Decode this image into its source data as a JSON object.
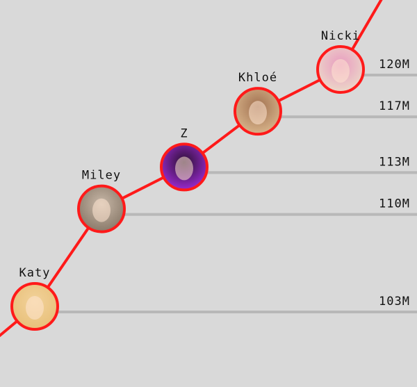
{
  "chart_data": {
    "type": "line",
    "title": "",
    "xlabel": "",
    "ylabel": "",
    "line_color": "#ff1a1a",
    "gridline_color": "#b8b8b8",
    "points": [
      {
        "name": "Katy",
        "value": 103,
        "label": "103M",
        "avatar_colors": [
          "#e8c07a",
          "#f2d29a"
        ]
      },
      {
        "name": "Miley",
        "value": 110,
        "label": "110M",
        "avatar_colors": [
          "#8a7a6a",
          "#c8b8a8"
        ]
      },
      {
        "name": "Z",
        "value": 113,
        "label": "113M",
        "avatar_colors": [
          "#9a2ad0",
          "#2a1030"
        ]
      },
      {
        "name": "Khloé",
        "value": 117,
        "label": "117M",
        "avatar_colors": [
          "#d8b48a",
          "#a07050"
        ]
      },
      {
        "name": "Nicki",
        "value": 120,
        "label": "120M",
        "avatar_colors": [
          "#ecd8c8",
          "#e89ac0"
        ]
      }
    ]
  }
}
